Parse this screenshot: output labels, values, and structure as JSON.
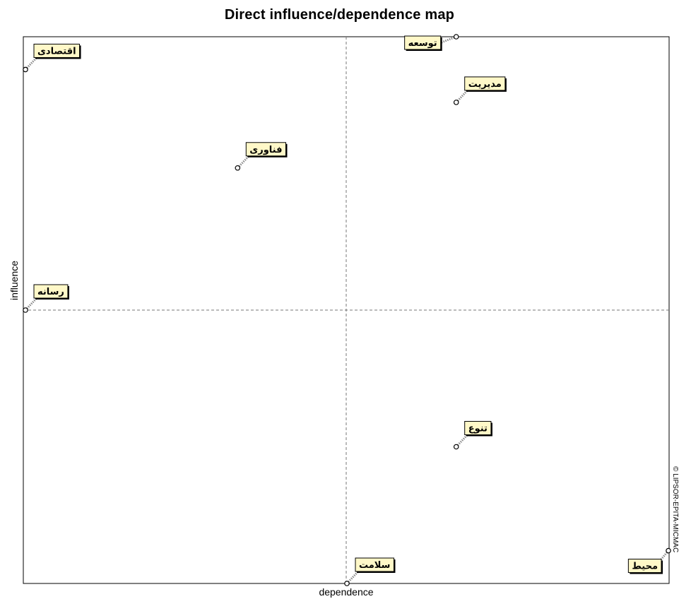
{
  "chart_data": {
    "type": "scatter",
    "title": "Direct influence/dependence map",
    "xlabel": "dependence",
    "ylabel": "influence",
    "xlim": [
      0,
      1
    ],
    "ylim": [
      0,
      1
    ],
    "divider_x": 0.5,
    "divider_y": 0.5,
    "grid": false,
    "copyright": "© LIPSOR-EPITA-MICMAC",
    "points": [
      {
        "label": "اقتصادی",
        "x": 0.0,
        "y": 0.94
      },
      {
        "label": "توسعه",
        "x": 0.67,
        "y": 1.0
      },
      {
        "label": "مدیریت",
        "x": 0.67,
        "y": 0.88
      },
      {
        "label": "فناوری",
        "x": 0.33,
        "y": 0.76
      },
      {
        "label": "رسانه",
        "x": 0.0,
        "y": 0.5
      },
      {
        "label": "تنوع",
        "x": 0.67,
        "y": 0.25
      },
      {
        "label": "سلامت",
        "x": 0.5,
        "y": 0.0
      },
      {
        "label": "محیط",
        "x": 1.0,
        "y": 0.06
      }
    ]
  }
}
